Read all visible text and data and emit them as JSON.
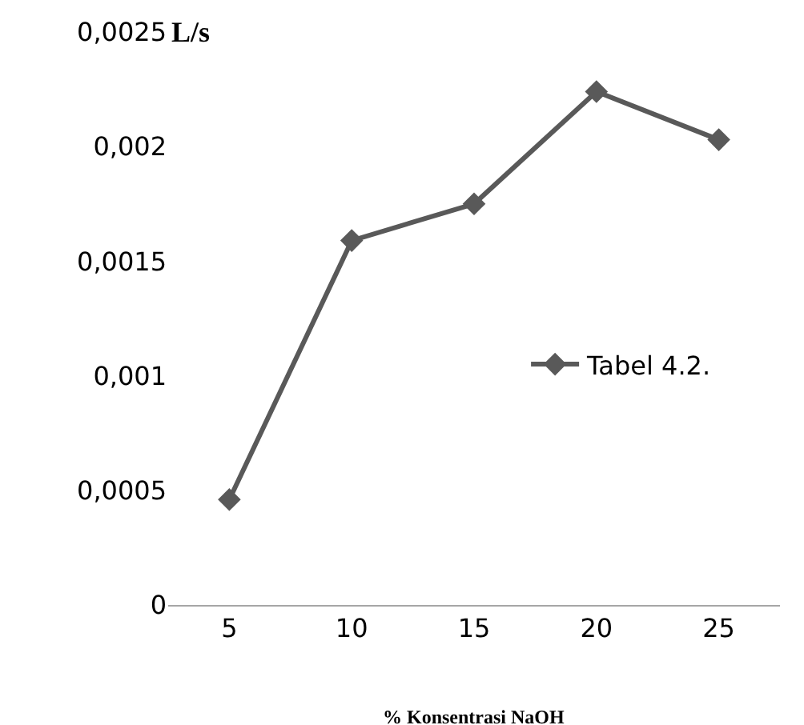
{
  "chart_data": {
    "type": "line",
    "ylabel": "L/s",
    "xlabel": "% Konsentrasi NaOH",
    "categories": [
      "5",
      "10",
      "15",
      "20",
      "25"
    ],
    "series": [
      {
        "name": "Tabel 4.2.",
        "color": "#595959",
        "values": [
          0.00046,
          0.00159,
          0.00175,
          0.00224,
          0.00203
        ]
      }
    ],
    "ylim": [
      0,
      0.0025
    ],
    "yticks": [
      {
        "value": 0,
        "label": "0"
      },
      {
        "value": 0.0005,
        "label": "0,0005"
      },
      {
        "value": 0.001,
        "label": "0,001"
      },
      {
        "value": 0.0015,
        "label": "0,0015"
      },
      {
        "value": 0.002,
        "label": "0,002"
      },
      {
        "value": 0.0025,
        "label": "0,0025"
      }
    ],
    "legend": "right",
    "marker": "diamond",
    "line_style": "solid"
  }
}
